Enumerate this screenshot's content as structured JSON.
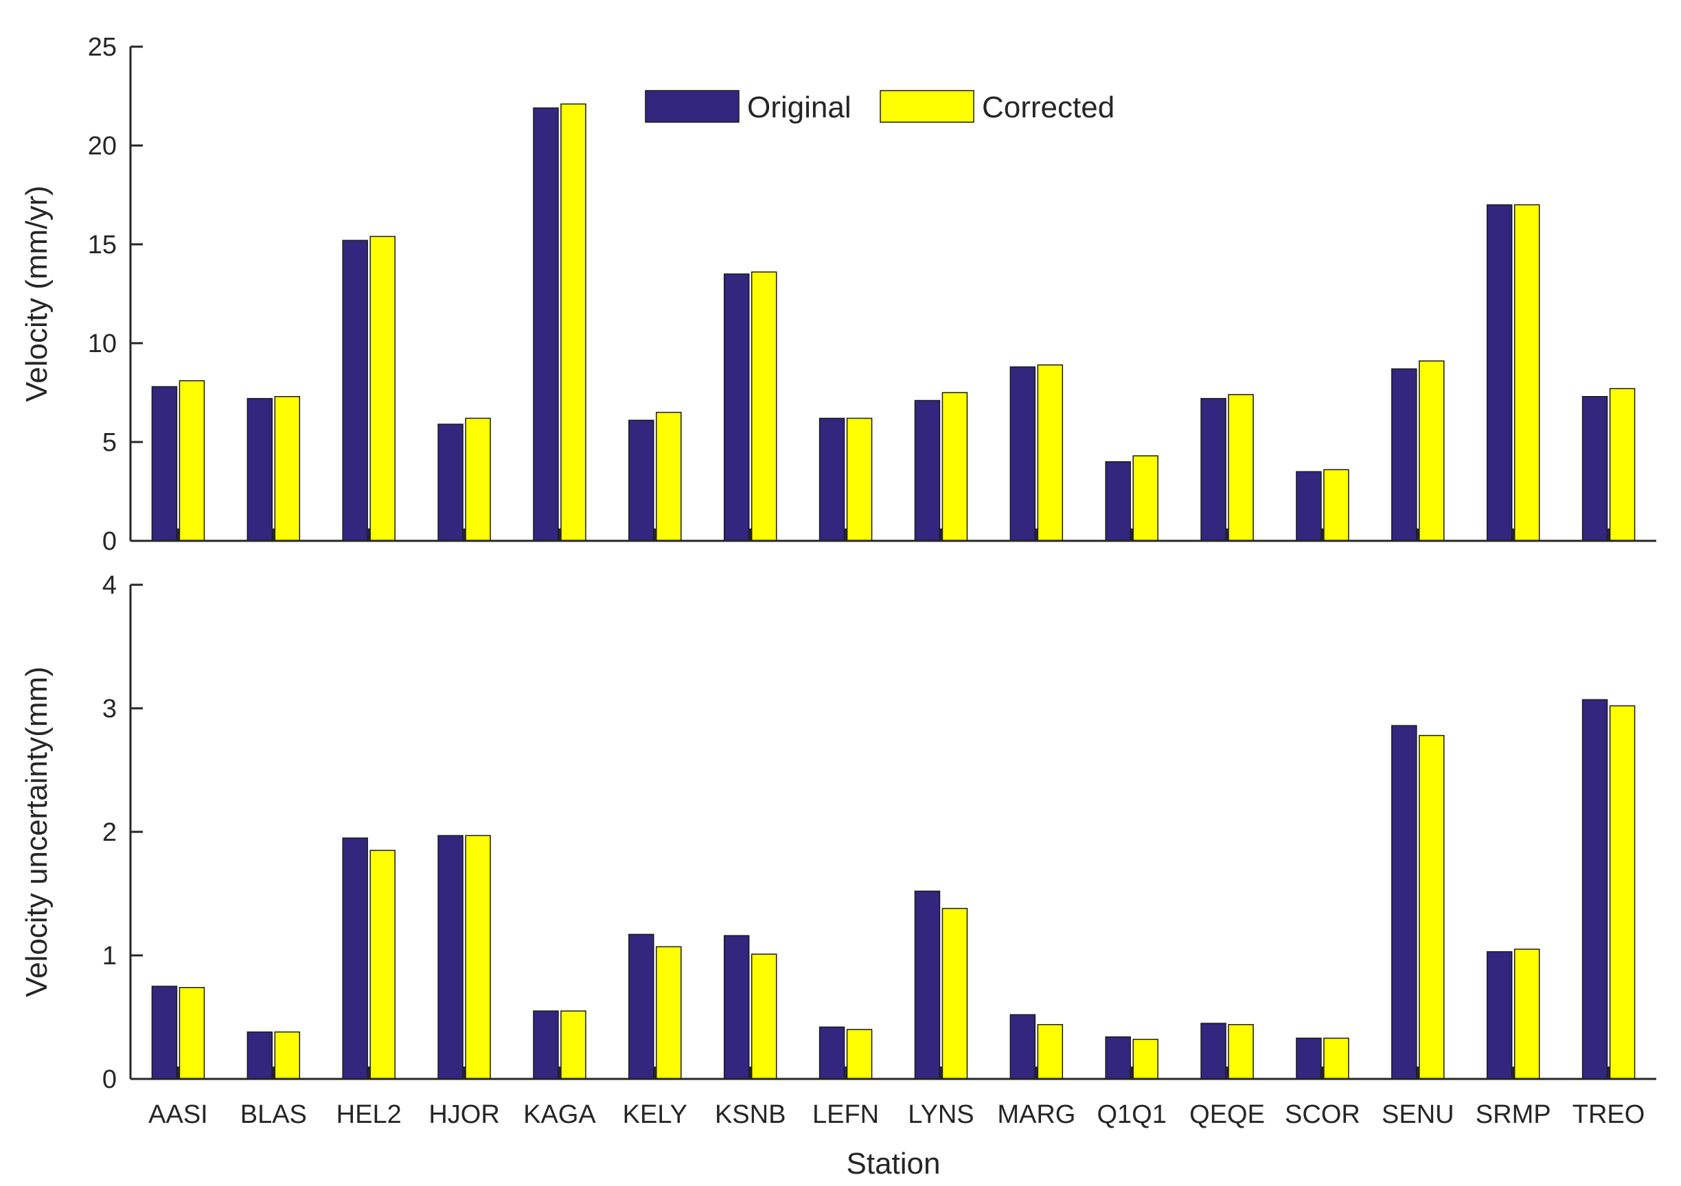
{
  "chart_data": [
    {
      "type": "bar",
      "panel": "top",
      "ylabel": "Velocity (mm/yr)",
      "ylim": [
        0,
        25
      ],
      "yticks": [
        0,
        5,
        10,
        15,
        20,
        25
      ],
      "categories": [
        "AASI",
        "BLAS",
        "HEL2",
        "HJOR",
        "KAGA",
        "KELY",
        "KSNB",
        "LEFN",
        "LYNS",
        "MARG",
        "Q1Q1",
        "QEQE",
        "SCOR",
        "SENU",
        "SRMP",
        "TREO"
      ],
      "series": [
        {
          "name": "Original",
          "color": "#32267f",
          "values": [
            7.8,
            7.2,
            15.2,
            5.9,
            21.9,
            6.1,
            13.5,
            6.2,
            7.1,
            8.8,
            4.0,
            7.2,
            3.5,
            8.7,
            17.0,
            7.3
          ]
        },
        {
          "name": "Corrected",
          "color": "#ffff00",
          "values": [
            8.1,
            7.3,
            15.4,
            6.2,
            22.1,
            6.5,
            13.6,
            6.2,
            7.5,
            8.9,
            4.3,
            7.4,
            3.6,
            9.1,
            17.0,
            7.7
          ]
        }
      ],
      "legend": {
        "placement": "top-center",
        "entries": [
          "Original",
          "Corrected"
        ]
      }
    },
    {
      "type": "bar",
      "panel": "bottom",
      "ylabel": "Velocity uncertainty(mm)",
      "xlabel": "Station",
      "ylim": [
        0,
        4
      ],
      "yticks": [
        0,
        1,
        2,
        3,
        4
      ],
      "categories": [
        "AASI",
        "BLAS",
        "HEL2",
        "HJOR",
        "KAGA",
        "KELY",
        "KSNB",
        "LEFN",
        "LYNS",
        "MARG",
        "Q1Q1",
        "QEQE",
        "SCOR",
        "SENU",
        "SRMP",
        "TREO"
      ],
      "series": [
        {
          "name": "Original",
          "color": "#32267f",
          "values": [
            0.75,
            0.38,
            1.95,
            1.97,
            0.55,
            1.17,
            1.16,
            0.42,
            1.52,
            0.52,
            0.34,
            0.45,
            0.33,
            2.86,
            1.03,
            3.07
          ]
        },
        {
          "name": "Corrected",
          "color": "#ffff00",
          "values": [
            0.74,
            0.38,
            1.85,
            1.97,
            0.55,
            1.07,
            1.01,
            0.4,
            1.38,
            0.44,
            0.32,
            0.44,
            0.33,
            2.78,
            1.05,
            3.02
          ]
        }
      ]
    }
  ]
}
